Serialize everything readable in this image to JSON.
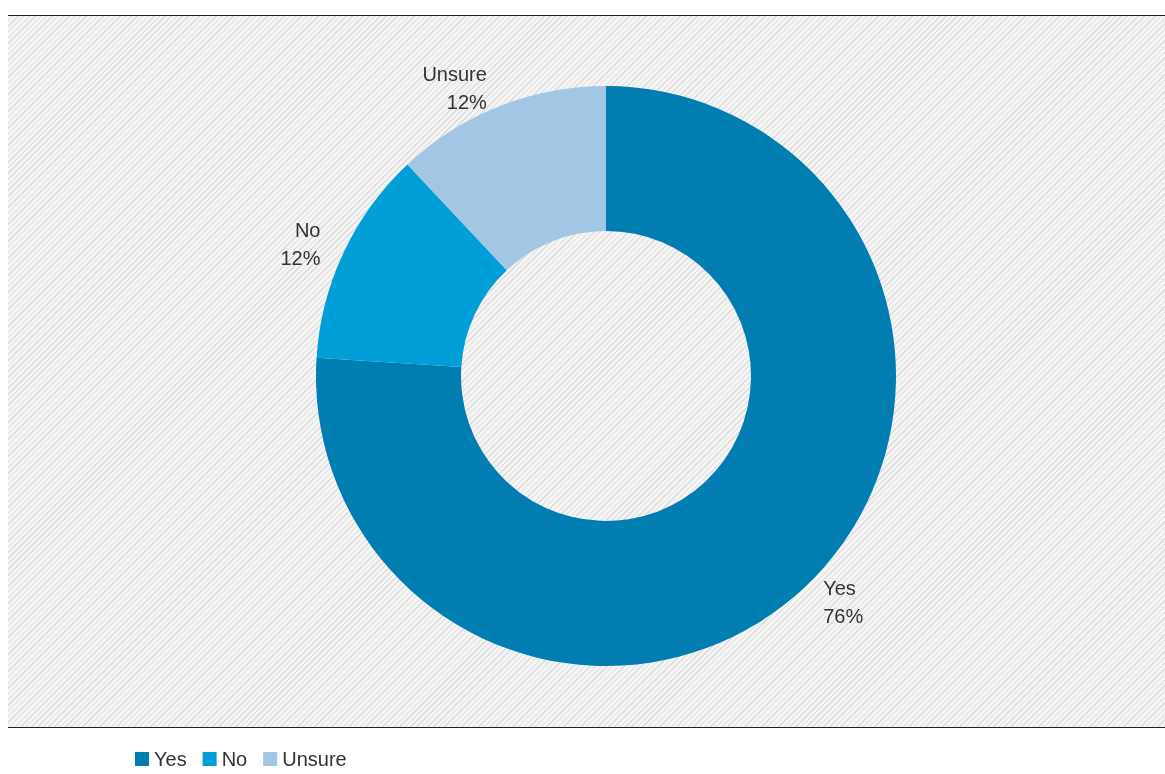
{
  "chart_data": {
    "type": "donut",
    "categories": [
      "Yes",
      "No",
      "Unsure"
    ],
    "values": [
      76,
      12,
      12
    ],
    "colors": [
      "#007db1",
      "#009fd7",
      "#a3c6e4"
    ],
    "value_labels": [
      "76%",
      "12%",
      "12%"
    ],
    "legend": "bottom left"
  }
}
